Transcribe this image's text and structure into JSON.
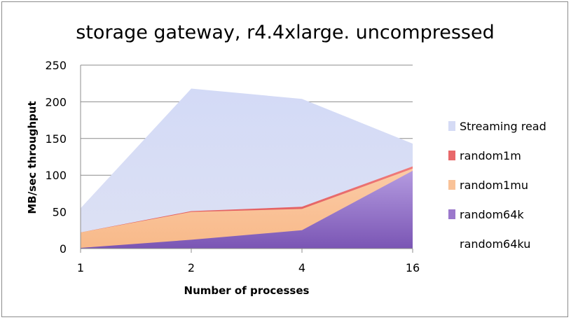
{
  "chart_data": {
    "type": "area",
    "title": "storage gateway, r4.4xlarge. uncompressed",
    "xlabel": "Number of processes",
    "ylabel": "MB/sec throughput",
    "categories": [
      "1",
      "2",
      "4",
      "16"
    ],
    "ylim": [
      0,
      250
    ],
    "yticks": [
      "0",
      "50",
      "100",
      "150",
      "200",
      "250"
    ],
    "grid": true,
    "legend_position": "right",
    "series": [
      {
        "name": "Streaming read",
        "values": [
          55,
          218,
          204,
          143
        ],
        "color": "#d5dbf5"
      },
      {
        "name": "random1m",
        "values": [
          22,
          51,
          57,
          112
        ],
        "color": "#e8686a"
      },
      {
        "name": "random1mu",
        "values": [
          22,
          50,
          54,
          109
        ],
        "color": "#f9c298"
      },
      {
        "name": "random64k",
        "values": [
          1,
          12,
          25,
          106
        ],
        "color": "#9b78cc"
      },
      {
        "name": "random64ku",
        "values": [
          null,
          null,
          null,
          null
        ],
        "color": "#ffffff"
      }
    ]
  }
}
